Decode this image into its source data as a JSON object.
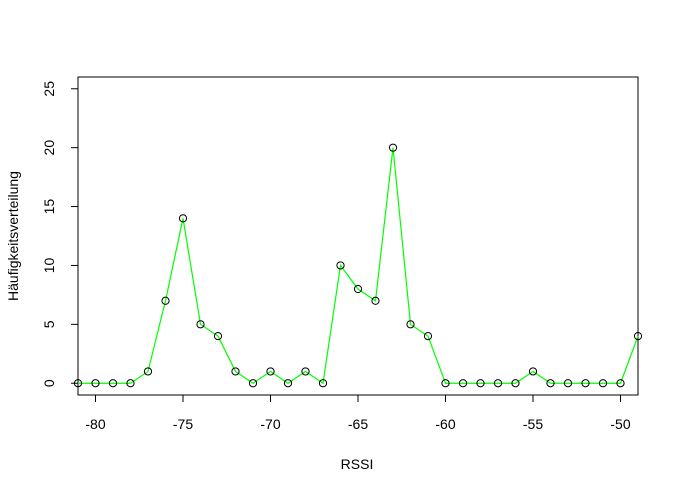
{
  "chart_data": {
    "type": "line",
    "title": "",
    "xlabel": "RSSI",
    "ylabel": "Häufigkeitsverteilung",
    "xlim": [
      -81,
      -49
    ],
    "ylim": [
      -1,
      26
    ],
    "x_ticks": [
      -80,
      -75,
      -70,
      -65,
      -60,
      -55,
      -50
    ],
    "y_ticks": [
      0,
      5,
      10,
      15,
      20,
      25
    ],
    "x_tick_labels": [
      "-80",
      "-75",
      "-70",
      "-65",
      "-60",
      "-55",
      "-50"
    ],
    "y_tick_labels": [
      "0",
      "5",
      "10",
      "15",
      "20",
      "25"
    ],
    "grid": false,
    "line_color": "#00ff00",
    "point_color": "#000000",
    "series": [
      {
        "x": [
          -81,
          -80,
          -79,
          -78,
          -77,
          -76,
          -75,
          -74,
          -73,
          -72,
          -71,
          -70,
          -69,
          -68,
          -67,
          -66,
          -65,
          -64,
          -63,
          -62,
          -61,
          -60,
          -59,
          -58,
          -57,
          -56,
          -55,
          -54,
          -53,
          -52,
          -51,
          -50,
          -49
        ],
        "values": [
          0,
          0,
          0,
          0,
          1,
          7,
          14,
          5,
          4,
          1,
          0,
          1,
          0,
          1,
          0,
          10,
          8,
          7,
          20,
          5,
          4,
          0,
          0,
          0,
          0,
          0,
          1,
          0,
          0,
          0,
          0,
          0,
          4
        ]
      }
    ]
  }
}
